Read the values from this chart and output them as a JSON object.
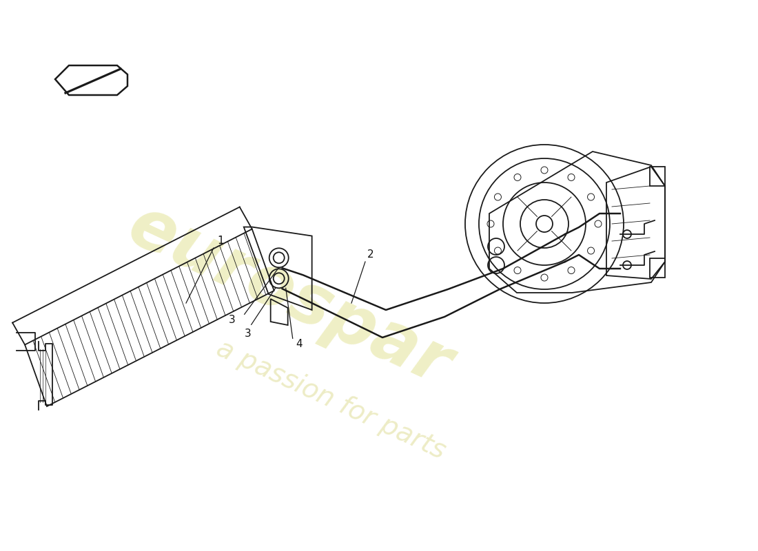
{
  "bg_color": "#ffffff",
  "line_color": "#1a1a1a",
  "label_1": "1",
  "label_2": "2",
  "label_3a": "3",
  "label_3b": "3",
  "label_4": "4",
  "label_color": "#111111",
  "label_fontsize": 11,
  "figsize": [
    11.0,
    8.0
  ],
  "dpi": 100,
  "wm1_text": "eurospar",
  "wm2_text": "a passion for parts",
  "wm1_color": "#c8c830",
  "wm2_color": "#c0bc30",
  "wm1_alpha": 0.28,
  "wm2_alpha": 0.28
}
